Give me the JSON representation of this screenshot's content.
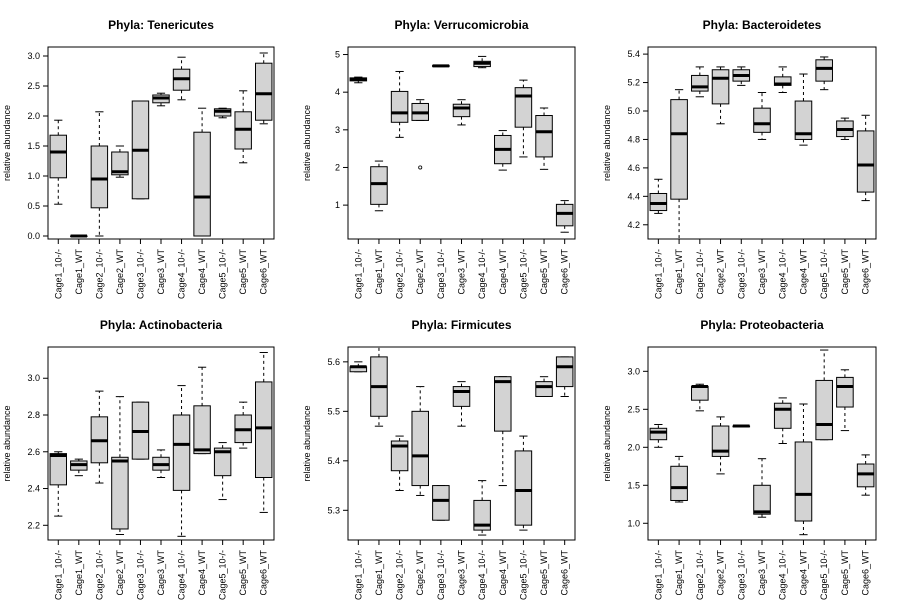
{
  "chart_data": [
    {
      "type": "boxplot",
      "title": "Phyla: Tenericutes",
      "ylabel": "relative abundance",
      "categories": [
        "Cage1_10-/-",
        "Cage1_WT",
        "Cage2_10-/-",
        "Cage2_WT",
        "Cage3_10-/-",
        "Cage3_WT",
        "Cage4_10-/-",
        "Cage4_WT",
        "Cage5_10-/-",
        "Cage5_WT",
        "Cage6_WT"
      ],
      "ylim": [
        -0.05,
        3.15
      ],
      "yticks": [
        0.0,
        0.5,
        1.0,
        1.5,
        2.0,
        2.5,
        3.0
      ],
      "ytick_labels": [
        "0.0",
        "0.5",
        "1.0",
        "1.5",
        "2.0",
        "2.5",
        "3.0"
      ],
      "boxes": [
        {
          "min": 0.53,
          "q1": 0.97,
          "median": 1.4,
          "q3": 1.68,
          "max": 1.93,
          "outliers": []
        },
        {
          "min": 0.0,
          "q1": 0.0,
          "median": 0.0,
          "q3": 0.0,
          "max": 0.0,
          "outliers": []
        },
        {
          "min": 0.0,
          "q1": 0.47,
          "median": 0.95,
          "q3": 1.5,
          "max": 2.07,
          "outliers": []
        },
        {
          "min": 0.98,
          "q1": 1.02,
          "median": 1.07,
          "q3": 1.4,
          "max": 1.5,
          "outliers": []
        },
        {
          "min": 0.62,
          "q1": 0.62,
          "median": 1.43,
          "q3": 2.25,
          "max": 2.25,
          "outliers": []
        },
        {
          "min": 2.17,
          "q1": 2.22,
          "median": 2.3,
          "q3": 2.35,
          "max": 2.38,
          "outliers": []
        },
        {
          "min": 2.27,
          "q1": 2.43,
          "median": 2.62,
          "q3": 2.78,
          "max": 2.98,
          "outliers": []
        },
        {
          "min": 0.0,
          "q1": 0.0,
          "median": 0.65,
          "q3": 1.73,
          "max": 2.13,
          "outliers": []
        },
        {
          "min": 1.97,
          "q1": 2.0,
          "median": 2.08,
          "q3": 2.12,
          "max": 2.13,
          "outliers": []
        },
        {
          "min": 1.22,
          "q1": 1.45,
          "median": 1.78,
          "q3": 2.07,
          "max": 2.42,
          "outliers": []
        },
        {
          "min": 1.87,
          "q1": 1.93,
          "median": 2.37,
          "q3": 2.88,
          "max": 3.05,
          "outliers": []
        }
      ]
    },
    {
      "type": "boxplot",
      "title": "Phyla: Verrucomicrobia",
      "ylabel": "relative abundance",
      "categories": [
        "Cage1_10-/-",
        "Cage1_WT",
        "Cage2_10-/-",
        "Cage2_WT",
        "Cage3_10-/-",
        "Cage3_WT",
        "Cage4_10-/-",
        "Cage4_WT",
        "Cage5_10-/-",
        "Cage5_WT",
        "Cage6_WT"
      ],
      "ylim": [
        0.1,
        5.2
      ],
      "yticks": [
        1,
        2,
        3,
        4,
        5
      ],
      "ytick_labels": [
        "1",
        "2",
        "3",
        "4",
        "5"
      ],
      "boxes": [
        {
          "min": 4.25,
          "q1": 4.3,
          "median": 4.35,
          "q3": 4.38,
          "max": 4.4,
          "outliers": []
        },
        {
          "min": 0.85,
          "q1": 1.02,
          "median": 1.57,
          "q3": 2.02,
          "max": 2.17,
          "outliers": []
        },
        {
          "min": 2.8,
          "q1": 3.2,
          "median": 3.45,
          "q3": 4.02,
          "max": 4.55,
          "outliers": []
        },
        {
          "min": 3.25,
          "q1": 3.25,
          "median": 3.45,
          "q3": 3.7,
          "max": 3.8,
          "outliers": [
            2.0
          ]
        },
        {
          "min": 4.68,
          "q1": 4.68,
          "median": 4.7,
          "q3": 4.71,
          "max": 4.72,
          "outliers": []
        },
        {
          "min": 3.13,
          "q1": 3.35,
          "median": 3.58,
          "q3": 3.68,
          "max": 3.8,
          "outliers": []
        },
        {
          "min": 4.65,
          "q1": 4.68,
          "median": 4.77,
          "q3": 4.82,
          "max": 4.95,
          "outliers": []
        },
        {
          "min": 1.93,
          "q1": 2.1,
          "median": 2.48,
          "q3": 2.85,
          "max": 2.98,
          "outliers": []
        },
        {
          "min": 2.28,
          "q1": 3.07,
          "median": 3.9,
          "q3": 4.12,
          "max": 4.32,
          "outliers": []
        },
        {
          "min": 1.95,
          "q1": 2.28,
          "median": 2.95,
          "q3": 3.38,
          "max": 3.58,
          "outliers": []
        },
        {
          "min": 0.28,
          "q1": 0.45,
          "median": 0.78,
          "q3": 1.02,
          "max": 1.12,
          "outliers": []
        }
      ]
    },
    {
      "type": "boxplot",
      "title": "Phyla: Bacteroidetes",
      "ylabel": "relative abundance",
      "categories": [
        "Cage1_10-/-",
        "Cage1_WT",
        "Cage2_10-/-",
        "Cage2_WT",
        "Cage3_10-/-",
        "Cage3_WT",
        "Cage4_10-/-",
        "Cage4_WT",
        "Cage5_10-/-",
        "Cage5_WT",
        "Cage6_WT"
      ],
      "ylim": [
        4.1,
        5.45
      ],
      "yticks": [
        4.2,
        4.4,
        4.6,
        4.8,
        5.0,
        5.2,
        5.4
      ],
      "ytick_labels": [
        "4.2",
        "4.4",
        "4.6",
        "4.8",
        "5.0",
        "5.2",
        "5.4"
      ],
      "boxes": [
        {
          "min": 4.28,
          "q1": 4.3,
          "median": 4.35,
          "q3": 4.42,
          "max": 4.52,
          "outliers": []
        },
        {
          "min": 4.1,
          "q1": 4.38,
          "median": 4.84,
          "q3": 5.08,
          "max": 5.15,
          "outliers": []
        },
        {
          "min": 5.1,
          "q1": 5.14,
          "median": 5.17,
          "q3": 5.25,
          "max": 5.31,
          "outliers": []
        },
        {
          "min": 4.91,
          "q1": 5.05,
          "median": 5.23,
          "q3": 5.29,
          "max": 5.31,
          "outliers": []
        },
        {
          "min": 5.18,
          "q1": 5.21,
          "median": 5.25,
          "q3": 5.29,
          "max": 5.31,
          "outliers": []
        },
        {
          "min": 4.8,
          "q1": 4.85,
          "median": 4.91,
          "q3": 5.02,
          "max": 5.13,
          "outliers": []
        },
        {
          "min": 5.13,
          "q1": 5.18,
          "median": 5.19,
          "q3": 5.24,
          "max": 5.31,
          "outliers": []
        },
        {
          "min": 4.76,
          "q1": 4.8,
          "median": 4.84,
          "q3": 5.07,
          "max": 5.26,
          "outliers": []
        },
        {
          "min": 5.15,
          "q1": 5.21,
          "median": 5.3,
          "q3": 5.36,
          "max": 5.38,
          "outliers": []
        },
        {
          "min": 4.8,
          "q1": 4.82,
          "median": 4.87,
          "q3": 4.93,
          "max": 4.95,
          "outliers": []
        },
        {
          "min": 4.37,
          "q1": 4.43,
          "median": 4.62,
          "q3": 4.86,
          "max": 4.97,
          "outliers": []
        }
      ]
    },
    {
      "type": "boxplot",
      "title": "Phyla: Actinobacteria",
      "ylabel": "relative abundance",
      "categories": [
        "Cage1_10-/-",
        "Cage1_WT",
        "Cage2_10-/-",
        "Cage2_WT",
        "Cage3_10-/-",
        "Cage3_WT",
        "Cage4_10-/-",
        "Cage4_WT",
        "Cage5_10-/-",
        "Cage5_WT",
        "Cage6_WT"
      ],
      "ylim": [
        2.12,
        3.17
      ],
      "yticks": [
        2.2,
        2.4,
        2.6,
        2.8,
        3.0
      ],
      "ytick_labels": [
        "2.2",
        "2.4",
        "2.6",
        "2.8",
        "3.0"
      ],
      "boxes": [
        {
          "min": 2.25,
          "q1": 2.42,
          "median": 2.58,
          "q3": 2.59,
          "max": 2.6,
          "outliers": []
        },
        {
          "min": 2.47,
          "q1": 2.5,
          "median": 2.53,
          "q3": 2.55,
          "max": 2.56,
          "outliers": []
        },
        {
          "min": 2.43,
          "q1": 2.54,
          "median": 2.66,
          "q3": 2.79,
          "max": 2.93,
          "outliers": []
        },
        {
          "min": 2.15,
          "q1": 2.18,
          "median": 2.55,
          "q3": 2.57,
          "max": 2.9,
          "outliers": []
        },
        {
          "min": 2.56,
          "q1": 2.56,
          "median": 2.71,
          "q3": 2.87,
          "max": 2.87,
          "outliers": []
        },
        {
          "min": 2.46,
          "q1": 2.5,
          "median": 2.53,
          "q3": 2.57,
          "max": 2.61,
          "outliers": []
        },
        {
          "min": 2.14,
          "q1": 2.39,
          "median": 2.64,
          "q3": 2.8,
          "max": 2.96,
          "outliers": []
        },
        {
          "min": 2.59,
          "q1": 2.59,
          "median": 2.61,
          "q3": 2.85,
          "max": 3.06,
          "outliers": []
        },
        {
          "min": 2.34,
          "q1": 2.47,
          "median": 2.6,
          "q3": 2.62,
          "max": 2.65,
          "outliers": []
        },
        {
          "min": 2.62,
          "q1": 2.65,
          "median": 2.72,
          "q3": 2.8,
          "max": 2.87,
          "outliers": []
        },
        {
          "min": 2.27,
          "q1": 2.46,
          "median": 2.73,
          "q3": 2.98,
          "max": 3.14,
          "outliers": []
        }
      ]
    },
    {
      "type": "boxplot",
      "title": "Phyla: Firmicutes",
      "ylabel": "relative abundance",
      "categories": [
        "Cage1_10-/-",
        "Cage1_WT",
        "Cage2_10-/-",
        "Cage2_WT",
        "Cage3_10-/-",
        "Cage3_WT",
        "Cage4_10-/-",
        "Cage4_WT",
        "Cage5_10-/-",
        "Cage5_WT",
        "Cage6_WT"
      ],
      "ylim": [
        5.24,
        5.63
      ],
      "yticks": [
        5.3,
        5.4,
        5.5,
        5.6
      ],
      "ytick_labels": [
        "5.3",
        "5.4",
        "5.5",
        "5.6"
      ],
      "boxes": [
        {
          "min": 5.58,
          "q1": 5.58,
          "median": 5.59,
          "q3": 5.59,
          "max": 5.6,
          "outliers": []
        },
        {
          "min": 5.47,
          "q1": 5.49,
          "median": 5.55,
          "q3": 5.61,
          "max": 5.63,
          "outliers": []
        },
        {
          "min": 5.34,
          "q1": 5.38,
          "median": 5.43,
          "q3": 5.44,
          "max": 5.45,
          "outliers": []
        },
        {
          "min": 5.33,
          "q1": 5.35,
          "median": 5.41,
          "q3": 5.5,
          "max": 5.55,
          "outliers": []
        },
        {
          "min": 5.28,
          "q1": 5.28,
          "median": 5.32,
          "q3": 5.35,
          "max": 5.35,
          "outliers": []
        },
        {
          "min": 5.47,
          "q1": 5.51,
          "median": 5.54,
          "q3": 5.55,
          "max": 5.56,
          "outliers": []
        },
        {
          "min": 5.25,
          "q1": 5.26,
          "median": 5.27,
          "q3": 5.32,
          "max": 5.36,
          "outliers": []
        },
        {
          "min": 5.35,
          "q1": 5.46,
          "median": 5.56,
          "q3": 5.57,
          "max": 5.57,
          "outliers": []
        },
        {
          "min": 5.26,
          "q1": 5.27,
          "median": 5.34,
          "q3": 5.42,
          "max": 5.45,
          "outliers": []
        },
        {
          "min": 5.53,
          "q1": 5.53,
          "median": 5.55,
          "q3": 5.56,
          "max": 5.57,
          "outliers": []
        },
        {
          "min": 5.53,
          "q1": 5.55,
          "median": 5.59,
          "q3": 5.61,
          "max": 5.61,
          "outliers": []
        }
      ]
    },
    {
      "type": "boxplot",
      "title": "Phyla: Proteobacteria",
      "ylabel": "relative abundance",
      "categories": [
        "Cage1_10-/-",
        "Cage1_WT",
        "Cage2_10-/-",
        "Cage2_WT",
        "Cage3_10-/-",
        "Cage3_WT",
        "Cage4_10-/-",
        "Cage4_WT",
        "Cage5_10-/-",
        "Cage5_WT",
        "Cage6_WT"
      ],
      "ylim": [
        0.78,
        3.32
      ],
      "yticks": [
        1.0,
        1.5,
        2.0,
        2.5,
        3.0
      ],
      "ytick_labels": [
        "1.0",
        "1.5",
        "2.0",
        "2.5",
        "3.0"
      ],
      "boxes": [
        {
          "min": 2.0,
          "q1": 2.1,
          "median": 2.2,
          "q3": 2.25,
          "max": 2.3,
          "outliers": []
        },
        {
          "min": 1.28,
          "q1": 1.3,
          "median": 1.47,
          "q3": 1.75,
          "max": 1.88,
          "outliers": []
        },
        {
          "min": 2.48,
          "q1": 2.62,
          "median": 2.8,
          "q3": 2.8,
          "max": 2.83,
          "outliers": []
        },
        {
          "min": 1.65,
          "q1": 1.88,
          "median": 1.95,
          "q3": 2.28,
          "max": 2.4,
          "outliers": []
        },
        {
          "min": 2.27,
          "q1": 2.27,
          "median": 2.28,
          "q3": 2.28,
          "max": 2.28,
          "outliers": []
        },
        {
          "min": 1.08,
          "q1": 1.12,
          "median": 1.15,
          "q3": 1.5,
          "max": 1.85,
          "outliers": []
        },
        {
          "min": 2.05,
          "q1": 2.25,
          "median": 2.5,
          "q3": 2.58,
          "max": 2.65,
          "outliers": []
        },
        {
          "min": 0.85,
          "q1": 1.03,
          "median": 1.38,
          "q3": 2.07,
          "max": 2.57,
          "outliers": []
        },
        {
          "min": 2.1,
          "q1": 2.1,
          "median": 2.3,
          "q3": 2.88,
          "max": 3.28,
          "outliers": []
        },
        {
          "min": 2.22,
          "q1": 2.53,
          "median": 2.8,
          "q3": 2.92,
          "max": 3.02,
          "outliers": []
        },
        {
          "min": 1.37,
          "q1": 1.48,
          "median": 1.65,
          "q3": 1.78,
          "max": 1.9,
          "outliers": []
        }
      ]
    }
  ]
}
